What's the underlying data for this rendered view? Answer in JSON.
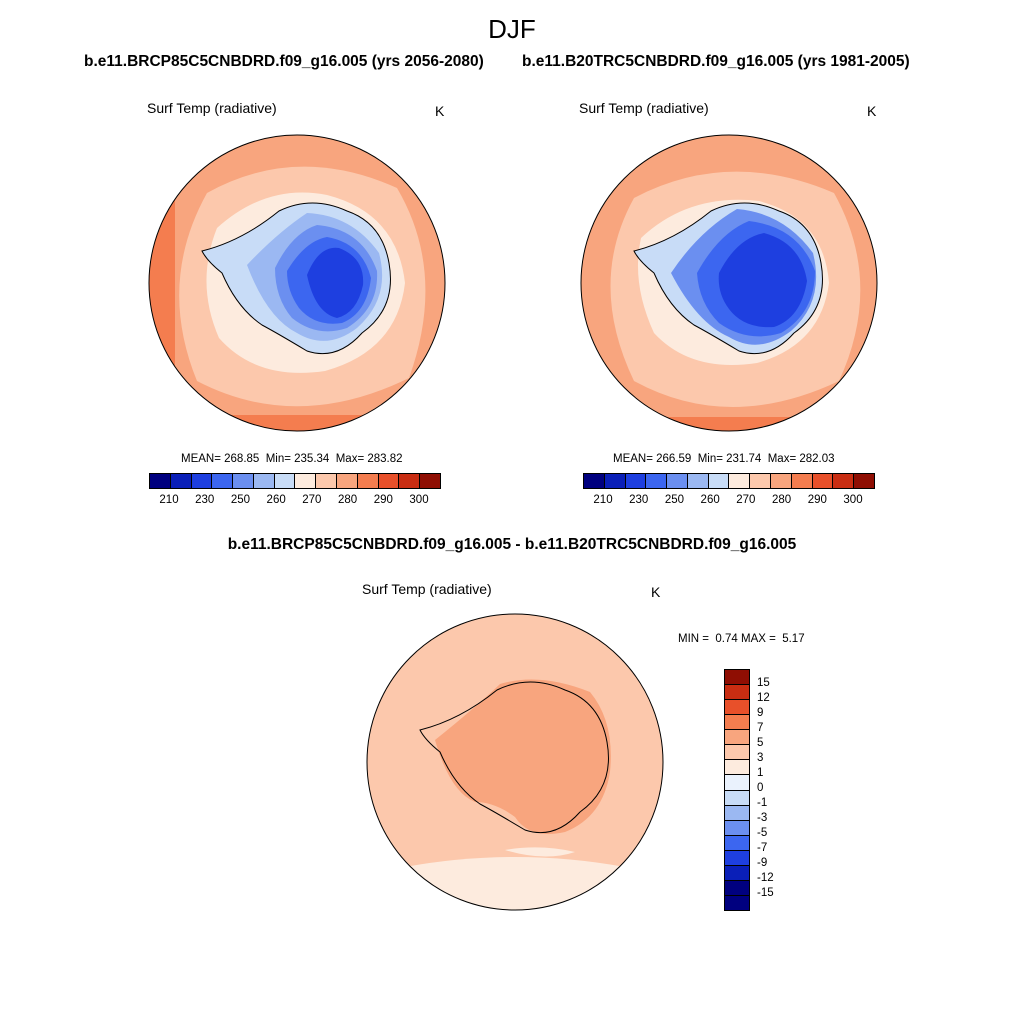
{
  "title": "DJF",
  "units": "K",
  "colors": {
    "temp_scale": [
      "#00007f",
      "#0a1fb8",
      "#1e3fe0",
      "#3c66f0",
      "#6b8ff0",
      "#9bb8f2",
      "#c8dcf7",
      "#fdebde",
      "#fcc8ac",
      "#f8a57e",
      "#f47d4f",
      "#e8502a",
      "#c92d12",
      "#8f0e03"
    ],
    "diff_scale": [
      "#00007f",
      "#0a1fb8",
      "#1e3fe0",
      "#3c66f0",
      "#6b8ff0",
      "#9bb8f2",
      "#c8dcf7",
      "#eaf2fd",
      "#fdebde",
      "#fcc8ac",
      "#f8a57e",
      "#f47d4f",
      "#e8502a",
      "#c92d12",
      "#8f0e03"
    ],
    "ocean_far": "#f8a57e",
    "ocean_mid": "#fcc8ac",
    "ocean_near": "#fdebde",
    "ice_1": "#c8dcf7",
    "ice_2": "#9bb8f2",
    "ice_3": "#6b8ff0",
    "ice_4": "#3c66f0",
    "ice_5": "#1e3fe0",
    "warm_strip": "#f47d4f",
    "diff_base": "#fcc8ac",
    "diff_land": "#f8a57e",
    "diff_low": "#fdebde"
  },
  "panels": [
    {
      "case": "b.e11.BRCP85C5CNBDRD.f09_g16.005 (yrs 2056-2080)",
      "variable": "Surf Temp (radiative)",
      "unit": "K",
      "mean_label": "MEAN= 268.85",
      "min_label": "Min= 235.34",
      "max_label": "Max= 283.82",
      "colorbar_ticks": [
        "210",
        "230",
        "250",
        "260",
        "270",
        "280",
        "290",
        "300"
      ]
    },
    {
      "case": "b.e11.B20TRC5CNBDRD.f09_g16.005 (yrs 1981-2005)",
      "variable": "Surf Temp (radiative)",
      "unit": "K",
      "mean_label": "MEAN= 266.59",
      "min_label": "Min= 231.74",
      "max_label": "Max= 282.03",
      "colorbar_ticks": [
        "210",
        "230",
        "250",
        "260",
        "270",
        "280",
        "290",
        "300"
      ]
    }
  ],
  "difference": {
    "title": "b.e11.BRCP85C5CNBDRD.f09_g16.005 - b.e11.B20TRC5CNBDRD.f09_g16.005",
    "variable": "Surf Temp (radiative)",
    "unit": "K",
    "min_label": "MIN =",
    "min_value": "0.74",
    "max_label": "MAX =",
    "max_value": "5.17",
    "colorbar_labels": [
      "15",
      "12",
      "9",
      "7",
      "5",
      "3",
      "1",
      "0",
      "-1",
      "-3",
      "-5",
      "-7",
      "-9",
      "-12",
      "-15"
    ]
  }
}
